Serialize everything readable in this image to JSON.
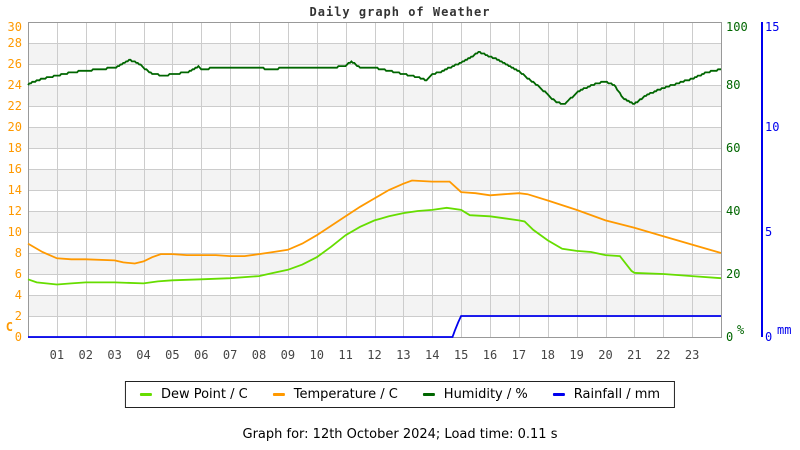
{
  "page": {
    "title": "Daily graph of Weather",
    "footer": "Graph for: 12th October 2024; Load time: 0.11 s"
  },
  "chart_data": {
    "type": "line",
    "title": "Daily graph of Weather",
    "title_color": "#333333",
    "grid_color": "#cccccc",
    "border_color": "#999999",
    "band_color": "#f3f3f3",
    "x_axis": {
      "range": [
        0,
        24
      ],
      "tick_labels": [
        "01",
        "02",
        "03",
        "04",
        "05",
        "06",
        "07",
        "08",
        "09",
        "10",
        "11",
        "12",
        "13",
        "14",
        "15",
        "16",
        "17",
        "18",
        "19",
        "20",
        "21",
        "22",
        "23"
      ],
      "color": "#444444"
    },
    "axes": {
      "left": {
        "min": 0,
        "max": 30,
        "tick_step": 2,
        "unit": "C",
        "color": "#ff9900"
      },
      "humidity": {
        "min": 0,
        "max": 100,
        "ticks": [
          0,
          20,
          40,
          60,
          80,
          100
        ],
        "unit": "%",
        "color": "#006600"
      },
      "rain": {
        "min": 0,
        "max": 15,
        "ticks": [
          0,
          5,
          10,
          15
        ],
        "unit": "mm",
        "color": "#0000ee"
      }
    },
    "series": [
      {
        "name": "Dew Point",
        "legend_label": "Dew Point / C",
        "color": "#66dd00",
        "axis": "left",
        "x": [
          0,
          0.3,
          1,
          1.5,
          2,
          3,
          4,
          4.5,
          5,
          6,
          7,
          8,
          8.5,
          9,
          9.5,
          10,
          10.5,
          11,
          11.5,
          12,
          12.5,
          13,
          13.5,
          14,
          14.5,
          15,
          15.3,
          16,
          16.5,
          17,
          17.2,
          17.5,
          18,
          18.5,
          19,
          19.5,
          20,
          20.5,
          20.9,
          21,
          22,
          23,
          24
        ],
        "y": [
          5.5,
          5.2,
          5.0,
          5.1,
          5.2,
          5.2,
          5.1,
          5.3,
          5.4,
          5.5,
          5.6,
          5.8,
          6.1,
          6.4,
          6.9,
          7.6,
          8.6,
          9.7,
          10.5,
          11.1,
          11.5,
          11.8,
          12.0,
          12.1,
          12.3,
          12.1,
          11.6,
          11.5,
          11.3,
          11.1,
          11.0,
          10.2,
          9.2,
          8.4,
          8.2,
          8.1,
          7.8,
          7.7,
          6.3,
          6.1,
          6.0,
          5.8,
          5.6
        ]
      },
      {
        "name": "Temperature",
        "legend_label": "Temperature / C",
        "color": "#ff9900",
        "axis": "left",
        "x": [
          0,
          0.5,
          1,
          1.5,
          2,
          3,
          3.3,
          3.7,
          4,
          4.3,
          4.6,
          5,
          5.5,
          6,
          6.5,
          7,
          7.5,
          8,
          8.5,
          9,
          9.5,
          10,
          10.5,
          11,
          11.5,
          12,
          12.5,
          13,
          13.3,
          14,
          14.6,
          15,
          15.5,
          16,
          16.5,
          17,
          17.3,
          18,
          19,
          20,
          21,
          22,
          23,
          24
        ],
        "y": [
          8.9,
          8.1,
          7.5,
          7.4,
          7.4,
          7.3,
          7.1,
          7.0,
          7.2,
          7.6,
          7.9,
          7.9,
          7.8,
          7.8,
          7.8,
          7.7,
          7.7,
          7.9,
          8.1,
          8.3,
          8.9,
          9.7,
          10.6,
          11.5,
          12.4,
          13.2,
          14.0,
          14.6,
          14.9,
          14.8,
          14.8,
          13.8,
          13.7,
          13.5,
          13.6,
          13.7,
          13.6,
          13.0,
          12.1,
          11.1,
          10.4,
          9.6,
          8.8,
          8.0
        ]
      },
      {
        "name": "Humidity",
        "legend_label": "Humidity / %",
        "color": "#006600",
        "axis": "humidity",
        "quantize": 0.5,
        "x": [
          0,
          0.2,
          0.5,
          1,
          1.5,
          2,
          2.5,
          3,
          3.2,
          3.5,
          3.8,
          4,
          4.3,
          4.7,
          5,
          5.5,
          5.9,
          6,
          6.5,
          7,
          8,
          8.3,
          9,
          10,
          10.5,
          11,
          11.2,
          11.5,
          12,
          12.5,
          13,
          13.5,
          13.8,
          14,
          14.3,
          14.6,
          15,
          15.3,
          15.6,
          15.8,
          16,
          16.3,
          16.6,
          17,
          17.4,
          17.7,
          18,
          18.3,
          18.6,
          19,
          19.3,
          19.7,
          20,
          20.3,
          20.6,
          21,
          21.3,
          21.6,
          22,
          22.5,
          23,
          23.5,
          24
        ],
        "y": [
          80,
          81,
          82,
          83,
          84,
          84.5,
          85,
          85.5,
          86.5,
          88,
          87,
          85.5,
          83.5,
          83,
          83.5,
          84,
          86,
          85,
          85.5,
          85.5,
          85.5,
          85,
          85.5,
          85.5,
          85.5,
          86,
          87.5,
          85.5,
          85.5,
          84.5,
          83.5,
          82.5,
          81.5,
          83.5,
          84,
          85.5,
          87,
          88.5,
          90.5,
          90,
          89,
          88,
          86.5,
          84.5,
          81.5,
          79.5,
          77,
          74.5,
          74,
          77.5,
          79,
          80.5,
          81,
          80,
          76,
          74,
          76,
          77.5,
          79,
          80.5,
          82,
          84,
          85
        ]
      },
      {
        "name": "Rainfall",
        "legend_label": "Rainfall / mm",
        "color": "#0000ee",
        "axis": "rain",
        "x": [
          0,
          14.7,
          14.78,
          14.9,
          15,
          24
        ],
        "y": [
          0,
          0,
          0.3,
          0.7,
          1.0,
          1.0
        ]
      }
    ]
  }
}
